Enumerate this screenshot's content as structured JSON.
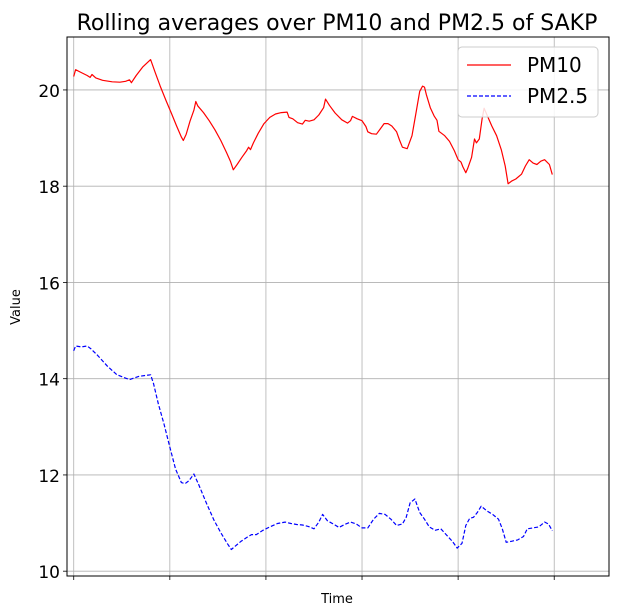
{
  "chart_data": {
    "type": "line",
    "title": "Rolling averages over PM10 and PM2.5 of SAKP",
    "xlabel": "Time",
    "ylabel": "Value",
    "ylim": [
      9.9,
      21.1
    ],
    "xlim": [
      -0.07,
      5.57
    ],
    "yticks": [
      10,
      12,
      14,
      16,
      18,
      20
    ],
    "xticks": [
      0,
      1,
      2,
      3,
      4,
      5
    ],
    "grid": true,
    "legend_position": "top-right",
    "series": [
      {
        "name": "PM10",
        "color": "#ff0000",
        "dash": "solid",
        "points": [
          [
            0.0,
            20.28
          ],
          [
            0.02,
            20.42
          ],
          [
            0.08,
            20.36
          ],
          [
            0.14,
            20.3
          ],
          [
            0.17,
            20.26
          ],
          [
            0.19,
            20.32
          ],
          [
            0.23,
            20.25
          ],
          [
            0.3,
            20.2
          ],
          [
            0.4,
            20.17
          ],
          [
            0.48,
            20.16
          ],
          [
            0.54,
            20.18
          ],
          [
            0.58,
            20.21
          ],
          [
            0.6,
            20.15
          ],
          [
            0.65,
            20.3
          ],
          [
            0.72,
            20.48
          ],
          [
            0.8,
            20.63
          ],
          [
            0.85,
            20.35
          ],
          [
            0.9,
            20.08
          ],
          [
            0.96,
            19.78
          ],
          [
            1.02,
            19.5
          ],
          [
            1.07,
            19.25
          ],
          [
            1.12,
            19.02
          ],
          [
            1.14,
            18.95
          ],
          [
            1.17,
            19.08
          ],
          [
            1.21,
            19.35
          ],
          [
            1.25,
            19.58
          ],
          [
            1.27,
            19.76
          ],
          [
            1.29,
            19.67
          ],
          [
            1.35,
            19.53
          ],
          [
            1.41,
            19.36
          ],
          [
            1.47,
            19.17
          ],
          [
            1.53,
            18.95
          ],
          [
            1.59,
            18.7
          ],
          [
            1.63,
            18.52
          ],
          [
            1.66,
            18.34
          ],
          [
            1.7,
            18.45
          ],
          [
            1.75,
            18.6
          ],
          [
            1.8,
            18.74
          ],
          [
            1.82,
            18.81
          ],
          [
            1.84,
            18.76
          ],
          [
            1.87,
            18.9
          ],
          [
            1.92,
            19.1
          ],
          [
            1.98,
            19.3
          ],
          [
            2.04,
            19.43
          ],
          [
            2.1,
            19.5
          ],
          [
            2.16,
            19.53
          ],
          [
            2.22,
            19.54
          ],
          [
            2.24,
            19.43
          ],
          [
            2.28,
            19.4
          ],
          [
            2.33,
            19.32
          ],
          [
            2.38,
            19.29
          ],
          [
            2.41,
            19.37
          ],
          [
            2.45,
            19.35
          ],
          [
            2.5,
            19.38
          ],
          [
            2.55,
            19.48
          ],
          [
            2.6,
            19.63
          ],
          [
            2.62,
            19.81
          ],
          [
            2.66,
            19.68
          ],
          [
            2.72,
            19.52
          ],
          [
            2.79,
            19.38
          ],
          [
            2.85,
            19.31
          ],
          [
            2.88,
            19.36
          ],
          [
            2.9,
            19.45
          ],
          [
            2.95,
            19.4
          ],
          [
            3.0,
            19.36
          ],
          [
            3.04,
            19.24
          ],
          [
            3.06,
            19.13
          ],
          [
            3.1,
            19.09
          ],
          [
            3.15,
            19.08
          ],
          [
            3.19,
            19.19
          ],
          [
            3.23,
            19.3
          ],
          [
            3.27,
            19.3
          ],
          [
            3.31,
            19.25
          ],
          [
            3.36,
            19.13
          ],
          [
            3.39,
            18.96
          ],
          [
            3.42,
            18.81
          ],
          [
            3.47,
            18.78
          ],
          [
            3.52,
            19.05
          ],
          [
            3.56,
            19.5
          ],
          [
            3.6,
            19.97
          ],
          [
            3.63,
            20.08
          ],
          [
            3.65,
            20.06
          ],
          [
            3.67,
            19.9
          ],
          [
            3.71,
            19.63
          ],
          [
            3.75,
            19.46
          ],
          [
            3.78,
            19.37
          ],
          [
            3.8,
            19.14
          ],
          [
            3.86,
            19.05
          ],
          [
            3.91,
            18.93
          ],
          [
            3.96,
            18.74
          ],
          [
            4.0,
            18.55
          ],
          [
            4.03,
            18.5
          ],
          [
            4.05,
            18.4
          ],
          [
            4.08,
            18.28
          ],
          [
            4.1,
            18.37
          ],
          [
            4.14,
            18.6
          ],
          [
            4.17,
            18.98
          ],
          [
            4.19,
            18.9
          ],
          [
            4.22,
            18.98
          ],
          [
            4.25,
            19.4
          ],
          [
            4.27,
            19.62
          ],
          [
            4.3,
            19.48
          ],
          [
            4.35,
            19.25
          ],
          [
            4.4,
            19.05
          ],
          [
            4.45,
            18.75
          ],
          [
            4.49,
            18.42
          ],
          [
            4.52,
            18.05
          ],
          [
            4.56,
            18.11
          ],
          [
            4.6,
            18.15
          ],
          [
            4.66,
            18.25
          ],
          [
            4.7,
            18.42
          ],
          [
            4.74,
            18.55
          ],
          [
            4.78,
            18.48
          ],
          [
            4.82,
            18.45
          ],
          [
            4.86,
            18.52
          ],
          [
            4.9,
            18.55
          ],
          [
            4.95,
            18.45
          ],
          [
            4.98,
            18.24
          ]
        ]
      },
      {
        "name": "PM2.5",
        "color": "#0000ff",
        "dash": "dashed",
        "points": [
          [
            0.0,
            14.58
          ],
          [
            0.02,
            14.68
          ],
          [
            0.08,
            14.66
          ],
          [
            0.14,
            14.68
          ],
          [
            0.18,
            14.62
          ],
          [
            0.25,
            14.48
          ],
          [
            0.35,
            14.26
          ],
          [
            0.45,
            14.08
          ],
          [
            0.58,
            13.98
          ],
          [
            0.68,
            14.05
          ],
          [
            0.8,
            14.08
          ],
          [
            0.83,
            13.9
          ],
          [
            0.88,
            13.48
          ],
          [
            0.94,
            13.05
          ],
          [
            1.0,
            12.58
          ],
          [
            1.06,
            12.12
          ],
          [
            1.12,
            11.84
          ],
          [
            1.16,
            11.82
          ],
          [
            1.2,
            11.88
          ],
          [
            1.25,
            12.02
          ],
          [
            1.3,
            11.8
          ],
          [
            1.38,
            11.42
          ],
          [
            1.46,
            11.06
          ],
          [
            1.53,
            10.8
          ],
          [
            1.6,
            10.57
          ],
          [
            1.64,
            10.45
          ],
          [
            1.68,
            10.52
          ],
          [
            1.74,
            10.62
          ],
          [
            1.8,
            10.7
          ],
          [
            1.85,
            10.76
          ],
          [
            1.9,
            10.76
          ],
          [
            1.97,
            10.85
          ],
          [
            2.04,
            10.92
          ],
          [
            2.12,
            10.99
          ],
          [
            2.2,
            11.02
          ],
          [
            2.26,
            10.99
          ],
          [
            2.32,
            10.97
          ],
          [
            2.38,
            10.96
          ],
          [
            2.44,
            10.93
          ],
          [
            2.5,
            10.88
          ],
          [
            2.55,
            11.02
          ],
          [
            2.59,
            11.18
          ],
          [
            2.64,
            11.05
          ],
          [
            2.7,
            10.98
          ],
          [
            2.76,
            10.91
          ],
          [
            2.82,
            10.97
          ],
          [
            2.88,
            11.02
          ],
          [
            2.94,
            10.98
          ],
          [
            3.0,
            10.9
          ],
          [
            3.06,
            10.9
          ],
          [
            3.12,
            11.08
          ],
          [
            3.18,
            11.2
          ],
          [
            3.24,
            11.18
          ],
          [
            3.3,
            11.08
          ],
          [
            3.36,
            10.95
          ],
          [
            3.42,
            10.98
          ],
          [
            3.46,
            11.12
          ],
          [
            3.5,
            11.42
          ],
          [
            3.55,
            11.5
          ],
          [
            3.6,
            11.22
          ],
          [
            3.65,
            11.08
          ],
          [
            3.7,
            10.92
          ],
          [
            3.76,
            10.85
          ],
          [
            3.82,
            10.88
          ],
          [
            3.88,
            10.75
          ],
          [
            3.94,
            10.62
          ],
          [
            3.99,
            10.48
          ],
          [
            4.04,
            10.58
          ],
          [
            4.08,
            10.95
          ],
          [
            4.12,
            11.1
          ],
          [
            4.16,
            11.12
          ],
          [
            4.2,
            11.22
          ],
          [
            4.24,
            11.35
          ],
          [
            4.3,
            11.25
          ],
          [
            4.36,
            11.18
          ],
          [
            4.42,
            11.08
          ],
          [
            4.46,
            10.88
          ],
          [
            4.5,
            10.6
          ],
          [
            4.55,
            10.62
          ],
          [
            4.62,
            10.65
          ],
          [
            4.68,
            10.72
          ],
          [
            4.72,
            10.88
          ],
          [
            4.78,
            10.9
          ],
          [
            4.84,
            10.92
          ],
          [
            4.9,
            11.02
          ],
          [
            4.94,
            10.98
          ],
          [
            4.98,
            10.84
          ]
        ]
      }
    ]
  }
}
